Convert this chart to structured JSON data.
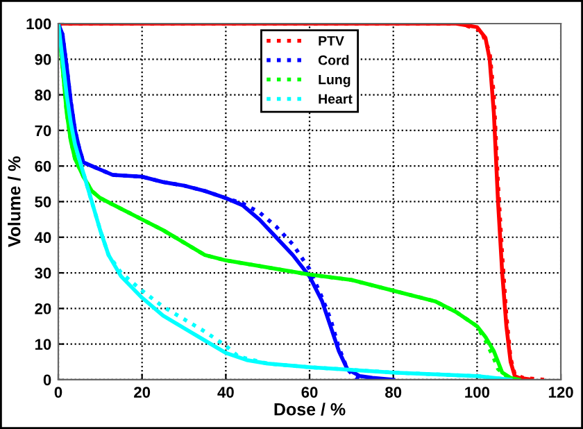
{
  "chart_data": {
    "type": "line",
    "xlabel": "Dose / %",
    "ylabel": "Volume / %",
    "xlim": [
      0,
      120
    ],
    "ylim": [
      0,
      100
    ],
    "xticks": [
      0,
      20,
      40,
      60,
      80,
      100,
      120
    ],
    "yticks": [
      0,
      10,
      20,
      30,
      40,
      50,
      60,
      70,
      80,
      90,
      100
    ],
    "grid": true,
    "legend": "top",
    "marker": "none",
    "series": [
      {
        "name": "PTV",
        "color": "#ff0000",
        "line_style": "dotted",
        "x": [
          0,
          96,
          101,
          103,
          104,
          105,
          106,
          107,
          108,
          109,
          111,
          116
        ],
        "values": [
          100,
          100,
          98,
          92,
          80,
          55,
          35,
          18,
          6,
          1.5,
          0.5,
          0
        ]
      },
      {
        "name": "Cord",
        "color": "#0000ff",
        "line_style": "dotted",
        "x": [
          0,
          1,
          2,
          3,
          4,
          5,
          6,
          8,
          10,
          13,
          20,
          25,
          30,
          35,
          40,
          44,
          48,
          52,
          56,
          60,
          63,
          65,
          67,
          69,
          71,
          73
        ],
        "values": [
          100,
          97,
          88,
          78,
          70,
          65,
          61,
          60,
          59,
          57.5,
          57,
          55.5,
          54.5,
          53,
          51,
          49.5,
          47,
          43,
          38,
          31,
          23,
          17,
          9,
          3,
          0.5,
          0
        ]
      },
      {
        "name": "Lung",
        "color": "#00ff00",
        "line_style": "dotted",
        "x": [
          0,
          1,
          2,
          3,
          4,
          6,
          8,
          10,
          15,
          20,
          25,
          30,
          35,
          40,
          50,
          60,
          70,
          80,
          90,
          95,
          100,
          102,
          104,
          105,
          107,
          109
        ],
        "values": [
          100,
          88,
          75,
          67,
          62,
          57,
          53,
          51,
          48,
          45,
          42,
          38.5,
          35,
          33.5,
          31.5,
          29.5,
          28,
          25,
          22,
          19,
          15,
          11,
          6,
          3,
          1,
          0
        ]
      },
      {
        "name": "Heart",
        "color": "#00ffff",
        "line_style": "dotted",
        "x": [
          0,
          1,
          2,
          3,
          4,
          6,
          8,
          10,
          12,
          15,
          20,
          25,
          30,
          35,
          40,
          43,
          50,
          60,
          80,
          100,
          108
        ],
        "values": [
          100,
          90,
          80,
          72,
          66,
          58,
          50,
          42,
          35,
          30,
          25,
          20.5,
          17,
          13.5,
          9.5,
          6.5,
          4.5,
          3.5,
          2,
          1,
          0
        ]
      },
      {
        "color": "#ff0000",
        "line_style": "solid",
        "x": [
          0,
          95,
          100,
          102,
          103,
          104,
          105,
          106,
          107,
          108,
          109,
          110,
          113
        ],
        "values": [
          100,
          100,
          99,
          96,
          90,
          75,
          50,
          30,
          15,
          5,
          1,
          0.5,
          0
        ]
      },
      {
        "color": "#0000ff",
        "line_style": "solid",
        "x": [
          0,
          1,
          2,
          3,
          4,
          5,
          6,
          8,
          10,
          13,
          20,
          25,
          30,
          35,
          40,
          44,
          48,
          52,
          56,
          60,
          63,
          65,
          67,
          69,
          72,
          75,
          80
        ],
        "values": [
          100,
          97,
          88,
          78,
          70,
          65,
          61,
          60,
          59,
          57.5,
          57,
          55.5,
          54.5,
          53,
          51,
          49,
          45,
          40,
          35,
          29,
          22,
          15,
          8,
          3,
          1,
          0.5,
          0
        ]
      },
      {
        "color": "#00ff00",
        "line_style": "solid",
        "x": [
          0,
          1,
          2,
          3,
          4,
          6,
          8,
          10,
          15,
          20,
          25,
          30,
          35,
          40,
          50,
          60,
          70,
          80,
          90,
          95,
          100,
          102,
          104,
          105,
          106,
          108,
          110
        ],
        "values": [
          100,
          88,
          75,
          67,
          62,
          57,
          53,
          51,
          48,
          45,
          42,
          38.5,
          35,
          33.5,
          31.5,
          29.5,
          28,
          25,
          22,
          19,
          15,
          12,
          8,
          5,
          2,
          0.5,
          0
        ]
      },
      {
        "color": "#00ffff",
        "line_style": "solid",
        "x": [
          0,
          1,
          2,
          3,
          4,
          6,
          8,
          10,
          12,
          15,
          20,
          25,
          30,
          35,
          40,
          45,
          50,
          60,
          80,
          100,
          108
        ],
        "values": [
          100,
          90,
          80,
          72,
          66,
          58,
          50,
          42,
          35,
          29,
          23,
          18,
          14.5,
          11,
          7.5,
          5.5,
          4.5,
          3.5,
          2,
          1,
          0
        ]
      }
    ]
  }
}
